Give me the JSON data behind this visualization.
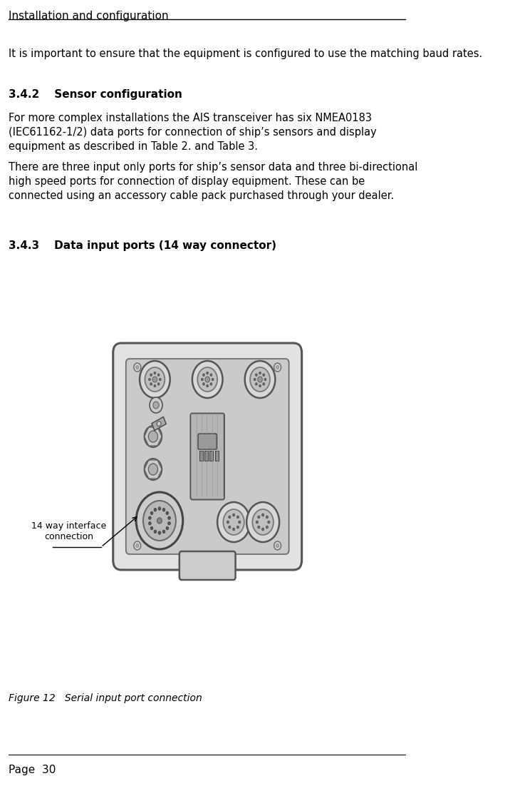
{
  "bg_color": "#ffffff",
  "header_text": "Installation and configuration",
  "header_font_size": 11,
  "footer_text": "Page  30",
  "footer_font_size": 11,
  "body_text_font_size": 10.5,
  "section_heading_font_size": 11,
  "intro_text": "It is important to ensure that the equipment is configured to use the matching baud rates.",
  "section1_heading": "3.4.2    Sensor configuration",
  "section1_para1": "For more complex installations the AIS transceiver has six NMEA0183\n(IEC61162-1/2) data ports for connection of ship’s sensors and display\nequipment as described in Table 2. and Table 3.",
  "section1_para2": "There are three input only ports for ship’s sensor data and three bi-directional\nhigh speed ports for connection of display equipment. These can be\nconnected using an accessory cable pack purchased through your dealer.",
  "section2_heading": "3.4.3    Data input ports (14 way connector)",
  "figure_caption": "Figure 12   Serial input port connection",
  "label_text": "14 way interface\nconnection",
  "text_color": "#000000",
  "line_color": "#000000",
  "device_color": "#d0d0d0",
  "device_dark": "#a0a0a0",
  "device_light": "#e8e8e8"
}
